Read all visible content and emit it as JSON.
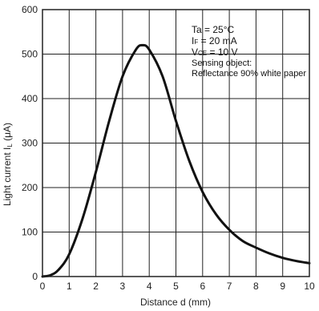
{
  "chart_data": {
    "type": "line",
    "xlabel": "Distance d (mm)",
    "ylabel_prefix": "Light current I",
    "ylabel_subscript": "L",
    "ylabel_suffix": " (μA)",
    "xlim": [
      0,
      10
    ],
    "ylim": [
      0,
      600
    ],
    "x_ticks": [
      "0",
      "1",
      "2",
      "3",
      "4",
      "5",
      "6",
      "7",
      "8",
      "9",
      "10"
    ],
    "y_ticks": [
      "0",
      "100",
      "200",
      "300",
      "400",
      "500",
      "600"
    ],
    "grid": true,
    "series": [
      {
        "x": [
          0,
          0.3,
          0.6,
          1.0,
          1.5,
          2.0,
          2.5,
          3.0,
          3.5,
          3.75,
          4.0,
          4.5,
          5.0,
          5.5,
          6.0,
          6.5,
          7.0,
          7.5,
          8.0,
          8.5,
          9.0,
          9.5,
          10.0
        ],
        "y": [
          0,
          3,
          15,
          50,
          130,
          235,
          350,
          450,
          510,
          520,
          510,
          450,
          350,
          260,
          190,
          140,
          105,
          80,
          65,
          52,
          42,
          35,
          30
        ],
        "color": "#111111"
      }
    ],
    "annotations": {
      "ta": "Ta = 25°C",
      "if_main": "I",
      "if_sub": "F",
      "if_value": " = 20 mA",
      "vce_main": "V",
      "vce_sub": "CE",
      "vce_value": " = 10 V",
      "sensing": "Sensing object:",
      "reflectance": "Reflectance 90% white paper"
    }
  }
}
